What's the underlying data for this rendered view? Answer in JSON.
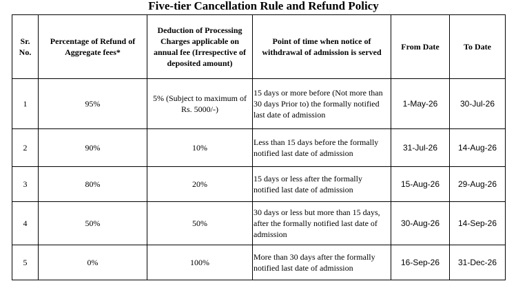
{
  "title": "Five-tier Cancellation Rule and Refund Policy",
  "headers": {
    "sr": "Sr. No.",
    "refund": "Percentage of Refund of Aggregate fees*",
    "deduction": "Deduction of Processing Charges applicable on annual fee (Irrespective of deposited amount)",
    "notice": "Point of time when notice of withdrawal of admission is served",
    "from": "From Date",
    "to": "To Date"
  },
  "rows": [
    {
      "sr": "1",
      "refund": "95%",
      "deduction": "5% (Subject to maximum of Rs. 5000/-)",
      "notice": "15 days or more before (Not more than 30 days Prior to) the formally notified last date of admission",
      "from": "1-May-26",
      "to": "30-Jul-26"
    },
    {
      "sr": "2",
      "refund": "90%",
      "deduction": "10%",
      "notice": "Less than 15 days before the formally notified last date of admission",
      "from": "31-Jul-26",
      "to": "14-Aug-26"
    },
    {
      "sr": "3",
      "refund": "80%",
      "deduction": "20%",
      "notice": "15 days or less after the formally notified last date of admission",
      "from": "15-Aug-26",
      "to": "29-Aug-26"
    },
    {
      "sr": "4",
      "refund": "50%",
      "deduction": "50%",
      "notice": "30 days or less but more than 15 days, after the formally notified last date of admission",
      "from": "30-Aug-26",
      "to": "14-Sep-26"
    },
    {
      "sr": "5",
      "refund": "0%",
      "deduction": "100%",
      "notice": "More than 30 days after the formally notified last date of admission",
      "from": "16-Sep-26",
      "to": "31-Dec-26"
    }
  ]
}
